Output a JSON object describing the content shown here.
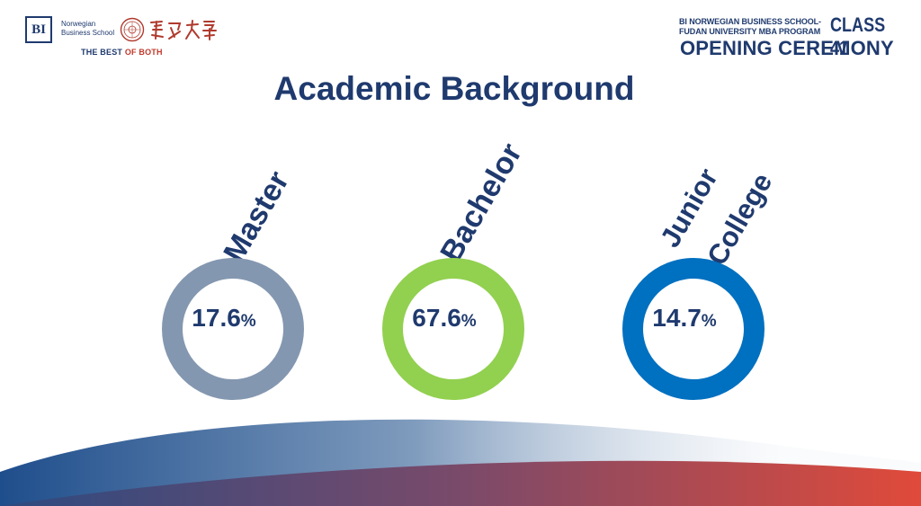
{
  "header": {
    "bi_logo_text": "BI",
    "bi_name_line1": "Norwegian",
    "bi_name_line2": "Business School",
    "tagline_part1": "THE BEST ",
    "tagline_part2": "OF BOTH",
    "program_line1": "BI NORWEGIAN BUSINESS SCHOOL-",
    "program_line2": "FUDAN UNIVERSITY MBA PROGRAM",
    "class_label": "CLASS 41",
    "ceremony_label": "OPENING CEREMONY"
  },
  "title": "Academic Background",
  "items": [
    {
      "label": "Master",
      "value": "17.6",
      "unit": "%",
      "color": "#8497b0"
    },
    {
      "label": "Bachelor",
      "value": "67.6",
      "unit": "%",
      "color": "#92d050"
    },
    {
      "label_line1": "Junior",
      "label_line2": "College",
      "value": "14.7",
      "unit": "%",
      "color": "#0070c0"
    }
  ],
  "colors": {
    "navy": "#1f3a6e",
    "accent_red": "#c0392b",
    "wave_blue": "#1f4e8c",
    "wave_red": "#d9534f"
  }
}
